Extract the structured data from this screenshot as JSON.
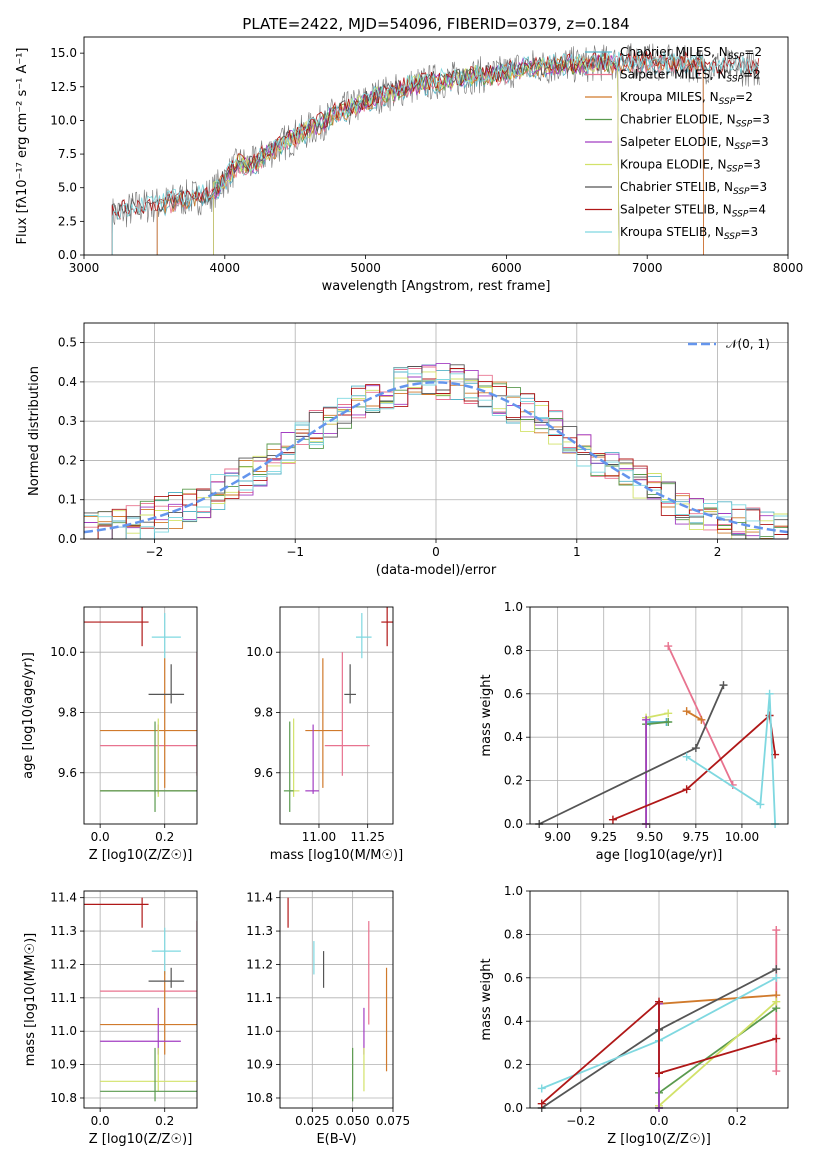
{
  "figure_title": "PLATE=2422, MJD=54096, FIBERID=0379, z=0.184",
  "colors": {
    "chab_miles": "#56b4c8",
    "salp_miles": "#e8738f",
    "krou_miles": "#d07a2c",
    "chab_elodie": "#5a9a4e",
    "salp_elodie": "#a23ec2",
    "krou_elodie": "#d2e26a",
    "chab_stelib": "#555555",
    "salp_stelib": "#b01818",
    "krou_stelib": "#7fd8e0",
    "gauss": "#6495ed"
  },
  "chart_data": [
    {
      "id": "spectrum",
      "type": "line",
      "title": "PLATE=2422, MJD=54096, FIBERID=0379, z=0.184",
      "xlabel": "wavelength [Angstrom, rest frame]",
      "ylabel": "Flux [fλ10⁻¹⁷ erg cm⁻² s⁻¹ A⁻¹]",
      "xlim": [
        3000,
        8000
      ],
      "ylim": [
        0,
        16.2
      ],
      "xticks": [
        3000,
        4000,
        5000,
        6000,
        7000,
        8000
      ],
      "yticks": [
        0.0,
        2.5,
        5.0,
        7.5,
        10.0,
        12.5,
        15.0
      ],
      "legend": {
        "placement": "top-right",
        "entries": [
          {
            "label": "Chabrier MILES, N",
            "sub": "SSP",
            "tail": "=2",
            "color": "chab_miles"
          },
          {
            "label": "Salpeter MILES, N",
            "sub": "SSP",
            "tail": "=2",
            "color": "salp_miles"
          },
          {
            "label": "Kroupa MILES, N",
            "sub": "SSP",
            "tail": "=2",
            "color": "krou_miles"
          },
          {
            "label": "Chabrier ELODIE, N",
            "sub": "SSP",
            "tail": "=3",
            "color": "chab_elodie"
          },
          {
            "label": "Salpeter ELODIE, N",
            "sub": "SSP",
            "tail": "=3",
            "color": "salp_elodie"
          },
          {
            "label": "Kroupa ELODIE, N",
            "sub": "SSP",
            "tail": "=3",
            "color": "krou_elodie"
          },
          {
            "label": "Chabrier STELIB, N",
            "sub": "SSP",
            "tail": "=3",
            "color": "chab_stelib"
          },
          {
            "label": "Salpeter STELIB, N",
            "sub": "SSP",
            "tail": "=4",
            "color": "salp_stelib"
          },
          {
            "label": "Kroupa STELIB, N",
            "sub": "SSP",
            "tail": "=3",
            "color": "krou_stelib"
          }
        ]
      },
      "data_wavelength": [
        3200,
        3300,
        3400,
        3500,
        3600,
        3700,
        3800,
        3900,
        4000,
        4100,
        4200,
        4300,
        4400,
        4500,
        4600,
        4700,
        4800,
        4900,
        5000,
        5100,
        5200,
        5300,
        5400,
        5500,
        5600,
        5700,
        5800,
        5900,
        6000,
        6100,
        6200,
        6300,
        6400,
        6500,
        6600,
        6700,
        6800,
        6900,
        7000,
        7100,
        7200,
        7300,
        7400,
        7500,
        7600,
        7700,
        7800
      ],
      "data_flux": [
        3.0,
        3.3,
        3.6,
        3.7,
        3.9,
        4.2,
        4.3,
        4.5,
        5.6,
        6.8,
        6.7,
        7.6,
        8.2,
        8.8,
        9.3,
        9.9,
        10.6,
        10.9,
        11.4,
        11.9,
        12.1,
        12.5,
        12.7,
        12.9,
        13.0,
        13.2,
        13.4,
        13.3,
        13.6,
        13.9,
        14.0,
        14.0,
        14.2,
        14.1,
        14.2,
        14.3,
        14.3,
        14.4,
        14.4,
        14.3,
        14.2,
        14.2,
        14.1,
        14.0,
        13.9,
        13.9,
        13.8
      ]
    },
    {
      "id": "residuals",
      "type": "histogram",
      "xlabel": "(data-model)/error",
      "ylabel": "Normed distribution",
      "xlim": [
        -2.5,
        2.5
      ],
      "ylim": [
        0,
        0.55
      ],
      "xticks": [
        -2,
        -1,
        0,
        1,
        2
      ],
      "yticks": [
        0.0,
        0.1,
        0.2,
        0.3,
        0.4,
        0.5
      ],
      "bin_width": 0.1,
      "legend": {
        "placement": "top-right",
        "label": "𝒩(0, 1)"
      }
    },
    {
      "id": "age_vs_z",
      "type": "errorbar",
      "xlabel": "Z [log10(Z/Z☉)]",
      "ylabel": "age [log10(age/yr)]",
      "xlim": [
        -0.05,
        0.3
      ],
      "ylim": [
        9.43,
        10.15
      ],
      "xticks": [
        0.0,
        0.2
      ],
      "yticks": [
        9.6,
        9.8,
        10.0
      ],
      "points": [
        {
          "x": 0.13,
          "y": 10.1,
          "xlo": -0.05,
          "xhi": 0.15,
          "ylo": 10.02,
          "yhi": 10.15,
          "color": "salp_stelib"
        },
        {
          "x": 0.2,
          "y": 10.05,
          "xlo": 0.16,
          "xhi": 0.25,
          "ylo": 9.98,
          "yhi": 10.13,
          "color": "krou_stelib"
        },
        {
          "x": 0.3,
          "y": 9.69,
          "xlo": 0.0,
          "xhi": 0.3,
          "ylo": 9.59,
          "yhi": 10.0,
          "color": "salp_miles"
        },
        {
          "x": 0.2,
          "y": 9.74,
          "xlo": 0.0,
          "xhi": 0.3,
          "ylo": 9.55,
          "yhi": 9.98,
          "color": "krou_miles"
        },
        {
          "x": 0.22,
          "y": 9.86,
          "xlo": 0.15,
          "xhi": 0.26,
          "ylo": 9.83,
          "yhi": 9.96,
          "color": "chab_stelib"
        },
        {
          "x": 0.18,
          "y": 9.54,
          "xlo": 0.0,
          "xhi": 0.3,
          "ylo": 9.53,
          "yhi": 9.76,
          "color": "salp_elodie"
        },
        {
          "x": 0.18,
          "y": 9.54,
          "xlo": 0.0,
          "xhi": 0.3,
          "ylo": 9.52,
          "yhi": 9.78,
          "color": "krou_elodie"
        },
        {
          "x": 0.17,
          "y": 9.54,
          "xlo": 0.0,
          "xhi": 0.3,
          "ylo": 9.47,
          "yhi": 9.77,
          "color": "chab_elodie"
        }
      ]
    },
    {
      "id": "age_vs_mass",
      "type": "errorbar",
      "xlabel": "mass [log10(M/M☉)]",
      "ylabel": "",
      "xlim": [
        10.8,
        11.38
      ],
      "ylim": [
        9.43,
        10.15
      ],
      "xticks": [
        11.0,
        11.25
      ],
      "yticks": [
        9.6,
        9.8,
        10.0
      ],
      "points": [
        {
          "x": 11.35,
          "y": 10.1,
          "xlo": 11.32,
          "xhi": 11.38,
          "ylo": 10.02,
          "yhi": 10.15,
          "color": "salp_stelib"
        },
        {
          "x": 11.22,
          "y": 10.05,
          "xlo": 11.19,
          "xhi": 11.27,
          "ylo": 9.98,
          "yhi": 10.13,
          "color": "krou_stelib"
        },
        {
          "x": 11.12,
          "y": 9.69,
          "xlo": 11.03,
          "xhi": 11.26,
          "ylo": 9.59,
          "yhi": 10.0,
          "color": "salp_miles"
        },
        {
          "x": 11.02,
          "y": 9.74,
          "xlo": 10.93,
          "xhi": 11.12,
          "ylo": 9.55,
          "yhi": 9.98,
          "color": "krou_miles"
        },
        {
          "x": 11.16,
          "y": 9.86,
          "xlo": 11.13,
          "xhi": 11.19,
          "ylo": 9.83,
          "yhi": 9.96,
          "color": "chab_stelib"
        },
        {
          "x": 10.97,
          "y": 9.54,
          "xlo": 10.93,
          "xhi": 11.0,
          "ylo": 9.53,
          "yhi": 9.76,
          "color": "salp_elodie"
        },
        {
          "x": 10.87,
          "y": 9.54,
          "xlo": 10.85,
          "xhi": 10.9,
          "ylo": 9.52,
          "yhi": 9.78,
          "color": "krou_elodie"
        },
        {
          "x": 10.85,
          "y": 9.54,
          "xlo": 10.82,
          "xhi": 10.87,
          "ylo": 9.47,
          "yhi": 9.77,
          "color": "chab_elodie"
        }
      ]
    },
    {
      "id": "massweight_vs_age",
      "type": "line",
      "xlabel": "age [log10(age/yr)]",
      "ylabel": "mass weight",
      "xlim": [
        8.85,
        10.25
      ],
      "ylim": [
        0,
        1.0
      ],
      "xticks": [
        9.0,
        9.25,
        9.5,
        9.75,
        10.0
      ],
      "yticks": [
        0.0,
        0.2,
        0.4,
        0.6,
        0.8,
        1.0
      ],
      "series": [
        {
          "color": "salp_miles",
          "x": [
            9.6,
            9.95
          ],
          "y": [
            0.82,
            0.18
          ]
        },
        {
          "color": "krou_miles",
          "x": [
            9.7,
            9.78
          ],
          "y": [
            0.52,
            0.48
          ]
        },
        {
          "color": "chab_miles",
          "x": [
            9.5,
            9.59
          ],
          "y": [
            0.47,
            0.47
          ]
        },
        {
          "color": "chab_elodie",
          "x": [
            9.48,
            9.48,
            9.6
          ],
          "y": [
            0.0,
            0.46,
            0.47
          ]
        },
        {
          "color": "krou_elodie",
          "x": [
            9.48,
            9.48,
            9.6
          ],
          "y": [
            0.0,
            0.49,
            0.51
          ]
        },
        {
          "color": "salp_elodie",
          "x": [
            9.48,
            9.48
          ],
          "y": [
            0.0,
            0.48
          ]
        },
        {
          "color": "chab_stelib",
          "x": [
            8.9,
            9.75,
            9.9
          ],
          "y": [
            0.0,
            0.35,
            0.64
          ]
        },
        {
          "color": "salp_stelib",
          "x": [
            9.3,
            9.7,
            10.15,
            10.18
          ],
          "y": [
            0.02,
            0.16,
            0.5,
            0.32
          ]
        },
        {
          "color": "krou_stelib",
          "x": [
            9.7,
            10.1,
            10.15,
            10.18
          ],
          "y": [
            0.31,
            0.09,
            0.6,
            0.0
          ]
        }
      ]
    },
    {
      "id": "mass_vs_z",
      "type": "errorbar",
      "xlabel": "Z [log10(Z/Z☉)]",
      "ylabel": "mass [log10(M/M☉)]",
      "xlim": [
        -0.05,
        0.3
      ],
      "ylim": [
        10.77,
        11.42
      ],
      "xticks": [
        0.0,
        0.2
      ],
      "yticks": [
        10.8,
        10.9,
        11.0,
        11.1,
        11.2,
        11.3,
        11.4
      ],
      "points": [
        {
          "x": 0.13,
          "y": 11.38,
          "xlo": -0.05,
          "xhi": 0.15,
          "ylo": 11.31,
          "yhi": 11.4,
          "color": "salp_stelib"
        },
        {
          "x": 0.2,
          "y": 11.24,
          "xlo": 0.16,
          "xhi": 0.25,
          "ylo": 11.17,
          "yhi": 11.31,
          "color": "krou_stelib"
        },
        {
          "x": 0.3,
          "y": 11.12,
          "xlo": 0.0,
          "xhi": 0.3,
          "ylo": 11.02,
          "yhi": 11.33,
          "color": "salp_miles"
        },
        {
          "x": 0.2,
          "y": 11.02,
          "xlo": 0.0,
          "xhi": 0.3,
          "ylo": 10.93,
          "yhi": 11.18,
          "color": "krou_miles"
        },
        {
          "x": 0.22,
          "y": 11.15,
          "xlo": 0.15,
          "xhi": 0.26,
          "ylo": 11.13,
          "yhi": 11.19,
          "color": "chab_stelib"
        },
        {
          "x": 0.18,
          "y": 10.97,
          "xlo": 0.0,
          "xhi": 0.25,
          "ylo": 10.93,
          "yhi": 11.07,
          "color": "salp_elodie"
        },
        {
          "x": 0.18,
          "y": 10.85,
          "xlo": 0.0,
          "xhi": 0.3,
          "ylo": 10.82,
          "yhi": 10.95,
          "color": "krou_elodie"
        },
        {
          "x": 0.17,
          "y": 10.82,
          "xlo": 0.0,
          "xhi": 0.3,
          "ylo": 10.79,
          "yhi": 10.95,
          "color": "chab_elodie"
        }
      ]
    },
    {
      "id": "mass_vs_ebv",
      "type": "errorbar",
      "xlabel": "E(B-V)",
      "ylabel": "",
      "xlim": [
        0.005,
        0.075
      ],
      "ylim": [
        10.77,
        11.42
      ],
      "xticks": [
        0.025,
        0.05,
        0.075
      ],
      "yticks": [
        10.8,
        10.9,
        11.0,
        11.1,
        11.2,
        11.3,
        11.4
      ],
      "points": [
        {
          "x": 0.01,
          "y": 11.35,
          "ylo": 11.31,
          "yhi": 11.4,
          "color": "salp_stelib"
        },
        {
          "x": 0.026,
          "y": 11.22,
          "ylo": 11.17,
          "yhi": 11.27,
          "color": "krou_stelib"
        },
        {
          "x": 0.032,
          "y": 11.17,
          "ylo": 11.13,
          "yhi": 11.24,
          "color": "chab_stelib"
        },
        {
          "x": 0.06,
          "y": 11.12,
          "ylo": 11.02,
          "yhi": 11.33,
          "color": "salp_miles"
        },
        {
          "x": 0.071,
          "y": 11.02,
          "ylo": 10.88,
          "yhi": 11.19,
          "color": "krou_miles"
        },
        {
          "x": 0.057,
          "y": 11.0,
          "ylo": 10.93,
          "yhi": 11.07,
          "color": "salp_elodie"
        },
        {
          "x": 0.057,
          "y": 10.86,
          "ylo": 10.82,
          "yhi": 10.95,
          "color": "krou_elodie"
        },
        {
          "x": 0.05,
          "y": 10.88,
          "ylo": 10.79,
          "yhi": 10.95,
          "color": "chab_elodie"
        }
      ]
    },
    {
      "id": "massweight_vs_z",
      "type": "line",
      "xlabel": "Z [log10(Z/Z☉)]",
      "ylabel": "mass weight",
      "xlim": [
        -0.33,
        0.33
      ],
      "ylim": [
        0,
        1.0
      ],
      "xticks": [
        -0.2,
        0.0,
        0.2
      ],
      "yticks": [
        0.0,
        0.2,
        0.4,
        0.6,
        0.8,
        1.0
      ],
      "series": [
        {
          "color": "salp_miles",
          "x": [
            0.3,
            0.3
          ],
          "y": [
            0.17,
            0.82
          ]
        },
        {
          "color": "krou_miles",
          "x": [
            0.0,
            0.3
          ],
          "y": [
            0.48,
            0.52
          ]
        },
        {
          "color": "chab_elodie",
          "x": [
            0.0,
            0.0,
            0.3
          ],
          "y": [
            0.0,
            0.07,
            0.46
          ]
        },
        {
          "color": "krou_elodie",
          "x": [
            0.0,
            0.3
          ],
          "y": [
            0.01,
            0.49
          ]
        },
        {
          "color": "salp_elodie",
          "x": [
            0.0,
            0.0
          ],
          "y": [
            0.0,
            0.48
          ]
        },
        {
          "color": "chab_stelib",
          "x": [
            -0.3,
            0.0,
            0.3
          ],
          "y": [
            0.0,
            0.36,
            0.64
          ]
        },
        {
          "color": "krou_stelib",
          "x": [
            -0.3,
            0.0,
            0.3
          ],
          "y": [
            0.09,
            0.31,
            0.6
          ]
        },
        {
          "color": "salp_stelib",
          "x": [
            -0.3,
            0.0,
            0.0,
            0.0,
            0.3
          ],
          "y": [
            0.02,
            0.49,
            0.16,
            0.16,
            0.32
          ]
        }
      ]
    }
  ]
}
